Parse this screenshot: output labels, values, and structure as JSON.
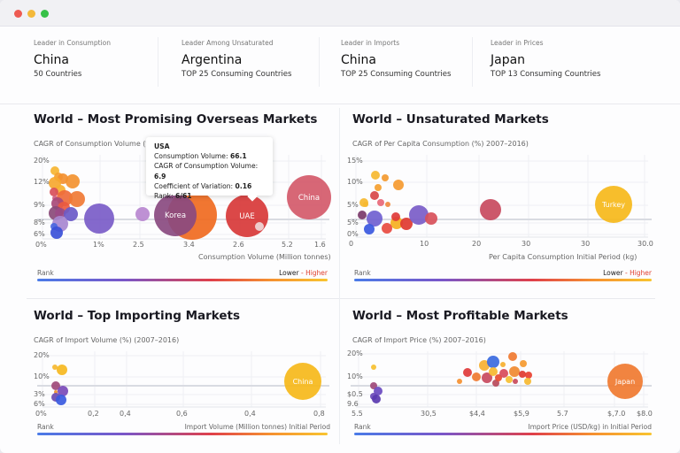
{
  "window": {
    "controls": [
      {
        "name": "close",
        "color": "#ee5b52"
      },
      {
        "name": "minimize",
        "color": "#f4b93a"
      },
      {
        "name": "maximize",
        "color": "#37c148"
      }
    ]
  },
  "stats": [
    {
      "label": "Leader in Consumption",
      "value": "China",
      "sub": "50 Countries"
    },
    {
      "label": "Leader Among Unsaturated",
      "value": "Argentina",
      "sub": "TOP 25 Consuming Countries"
    },
    {
      "label": "Leader in Imports",
      "value": "China",
      "sub": "TOP 25 Consuming Countries"
    },
    {
      "label": "Leader in Prices",
      "value": "Japan",
      "sub": "TOP  13 Consuming Countries"
    }
  ],
  "legend": {
    "rank": "Rank",
    "lower": "Lower",
    "sep": " - ",
    "higher": "Higher"
  },
  "tooltip": {
    "title": "USA",
    "rows": [
      {
        "k": "Consumption Volume: ",
        "v": "66.1"
      },
      {
        "k": "CAGR of Consumption Volume: ",
        "v": "6.9"
      },
      {
        "k": "Coefficient of Variation: ",
        "v": "0.16"
      },
      {
        "k": "Rank: ",
        "v": "6/61"
      }
    ]
  },
  "chart_data": [
    {
      "id": "c1",
      "type": "scatter",
      "title": "World – Most Promising Overseas Markets",
      "ylabel": "CAGR of Consumption Volume (%",
      "xlabel": "Consumption Volume (Million tonnes)",
      "xlim": [
        0,
        32
      ],
      "ylim": [
        0,
        9.5
      ],
      "highlight_y": 2.2,
      "xticks": [
        {
          "l": "0%",
          "v": 0
        },
        {
          "l": "1%",
          "v": 6.5
        },
        {
          "l": "2.5",
          "v": 11
        },
        {
          "l": "3.4",
          "v": 16.7
        },
        {
          "l": "2.6",
          "v": 22.3
        },
        {
          "l": "5.2",
          "v": 27.8
        },
        {
          "l": "1.6",
          "v": 31.5
        }
      ],
      "yticks": [
        {
          "l": "20%",
          "v": 8.8
        },
        {
          "l": "12%",
          "v": 6.4
        },
        {
          "l": "9%",
          "v": 3.8
        },
        {
          "l": "8%",
          "v": 1.8
        },
        {
          "l": "6%",
          "v": 0.5
        }
      ],
      "points": [
        [
          1.4,
          7.7,
          5,
          "#f6b533"
        ],
        [
          1.8,
          7.0,
          5,
          "#f5a030"
        ],
        [
          2.3,
          6.8,
          6,
          "#f39030"
        ],
        [
          3.4,
          6.5,
          8,
          "#f39330"
        ],
        [
          1.4,
          6.3,
          7,
          "#f6a830"
        ],
        [
          2.0,
          5.5,
          6,
          "#f6b030"
        ],
        [
          1.3,
          5.3,
          5,
          "#d8505a"
        ],
        [
          2.5,
          4.6,
          9,
          "#ee6a3a"
        ],
        [
          3.9,
          4.5,
          9,
          "#f07a35"
        ],
        [
          1.4,
          4.6,
          3,
          "#d06080"
        ],
        [
          1.7,
          4.0,
          7,
          "#a84a78"
        ],
        [
          2.4,
          3.5,
          7,
          "#ea5a40"
        ],
        [
          1.5,
          2.9,
          8,
          "#8a4a7a"
        ],
        [
          2.0,
          2.9,
          6,
          "#9a4a88"
        ],
        [
          3.2,
          2.8,
          8,
          "#6a5ac8"
        ],
        [
          2.0,
          1.7,
          9,
          "#a888d0"
        ],
        [
          1.3,
          1.4,
          4,
          "#4a68e0"
        ],
        [
          1.6,
          0.7,
          7,
          "#3a50d8"
        ],
        [
          6.4,
          2.3,
          17,
          "#7a5cc8"
        ],
        [
          11.3,
          2.8,
          8,
          "#b888d0"
        ],
        [
          16.9,
          2.7,
          28,
          "#f06a20"
        ],
        [
          15.0,
          2.7,
          24,
          "#8a4a80",
          "Korea"
        ],
        [
          23.1,
          2.6,
          24,
          "#d83838",
          "UAE"
        ],
        [
          24.5,
          1.4,
          5,
          "#f0d8d8"
        ],
        [
          30.1,
          4.7,
          25,
          "#d45a6a",
          "China"
        ]
      ]
    },
    {
      "id": "c2",
      "type": "scatter",
      "title": "World – Unsaturated Markets",
      "ylabel": "CAGR of Per Capita Consumption (%) 2007–2016)",
      "xlabel": "Per Capita Consumption Initial Period (kg)",
      "xlim": [
        0,
        33
      ],
      "ylim": [
        0,
        9.3
      ],
      "highlight_y": 2.0,
      "xticks": [
        {
          "l": "0",
          "v": 0
        },
        {
          "l": "10",
          "v": 8
        },
        {
          "l": "20",
          "v": 13.9
        },
        {
          "l": "30",
          "v": 19.5
        },
        {
          "l": "30",
          "v": 26.2
        },
        {
          "l": "30.0",
          "v": 32.6
        }
      ],
      "yticks": [
        {
          "l": "15%",
          "v": 8.6
        },
        {
          "l": "10%",
          "v": 6.2
        },
        {
          "l": "5%",
          "v": 3.6
        },
        {
          "l": "5%",
          "v": 1.6
        },
        {
          "l": "0%",
          "v": 0.3
        }
      ],
      "points": [
        [
          2.2,
          7.0,
          5,
          "#f6b830"
        ],
        [
          3.3,
          6.7,
          4,
          "#f39a30"
        ],
        [
          2.5,
          5.6,
          4,
          "#f5a030"
        ],
        [
          4.8,
          5.9,
          6,
          "#f59a30"
        ],
        [
          2.1,
          4.7,
          5,
          "#d84848"
        ],
        [
          2.8,
          3.9,
          4,
          "#e86878"
        ],
        [
          3.6,
          3.7,
          3,
          "#f08a40"
        ],
        [
          0.9,
          3.9,
          5,
          "#f6b830"
        ],
        [
          1.1,
          3.7,
          3,
          "#f6b830"
        ],
        [
          0.7,
          2.5,
          5,
          "#7a3a6a"
        ],
        [
          2.1,
          2.1,
          9,
          "#7060d0"
        ],
        [
          4.6,
          1.6,
          7,
          "#f6b020"
        ],
        [
          4.5,
          2.3,
          5,
          "#e03a3a"
        ],
        [
          5.7,
          1.5,
          7,
          "#e03a30"
        ],
        [
          3.5,
          1.0,
          6,
          "#e84a40"
        ],
        [
          1.5,
          0.9,
          6,
          "#3a58e0"
        ],
        [
          7.1,
          2.5,
          11,
          "#7a5cc8"
        ],
        [
          8.5,
          2.1,
          7,
          "#d8505a"
        ],
        [
          15.2,
          3.1,
          12,
          "#c84a5e"
        ],
        [
          29.1,
          3.7,
          21,
          "#f6b81a",
          "Turkey"
        ]
      ]
    },
    {
      "id": "c3",
      "type": "scatter",
      "title": "World – Top Importing Markets",
      "ylabel": "CAGR of Import Volume (%) (2007–2016)",
      "xlabel": "Import Volume (Million tonnes) Initial Period",
      "xlim": [
        0,
        32
      ],
      "ylim": [
        0,
        6.3
      ],
      "highlight_y": 2.4,
      "xticks": [
        {
          "l": "0%",
          "v": 0
        },
        {
          "l": "0,2",
          "v": 5.9
        },
        {
          "l": "0,4",
          "v": 9.5
        },
        {
          "l": "0,6",
          "v": 15.9
        },
        {
          "l": "0,4",
          "v": 23.6
        },
        {
          "l": "0,8",
          "v": 31.4
        }
      ],
      "yticks": [
        {
          "l": "20%",
          "v": 5.8
        },
        {
          "l": "10%",
          "v": 3.4
        },
        {
          "l": "3%",
          "v": 1.4
        },
        {
          "l": "6%",
          "v": 0.3
        }
      ],
      "points": [
        [
          1.4,
          4.5,
          3,
          "#f6b830"
        ],
        [
          2.2,
          4.2,
          6,
          "#f6b820"
        ],
        [
          1.5,
          2.4,
          5,
          "#a04a7a"
        ],
        [
          2.3,
          1.8,
          6,
          "#7a4ab8"
        ],
        [
          1.5,
          1.7,
          2,
          "#f09030"
        ],
        [
          1.5,
          1.1,
          5,
          "#6a4ab0"
        ],
        [
          2.1,
          0.8,
          6,
          "#3a5ae0"
        ],
        [
          29.4,
          2.9,
          21,
          "#f6b81a",
          "China"
        ]
      ]
    },
    {
      "id": "c4",
      "type": "scatter",
      "title": "World – Most Profitable Markets",
      "ylabel": "CAGR of Import Price (%)  2007–2016)",
      "xlabel": "Import Price (USD/kg)  in  Initial Period",
      "xlim": [
        0,
        33
      ],
      "ylim": [
        0,
        6.3
      ],
      "highlight_y": 2.4,
      "xticks": [
        {
          "l": "5.5",
          "v": 0.3
        },
        {
          "l": "30,5",
          "v": 8.1
        },
        {
          "l": "$4,4",
          "v": 13.6
        },
        {
          "l": "$5,9",
          "v": 18.6
        },
        {
          "l": "5.7",
          "v": 23.5
        },
        {
          "l": "$,7.0",
          "v": 29.2
        },
        {
          "l": "$8.0",
          "v": 32.5
        }
      ],
      "yticks": [
        {
          "l": "20%",
          "v": 6.0
        },
        {
          "l": "10%",
          "v": 3.4
        },
        {
          "l": "$0.5",
          "v": 1.4
        },
        {
          "l": "9.6",
          "v": 0.3
        }
      ],
      "points": [
        [
          2.0,
          4.5,
          3,
          "#f6c030"
        ],
        [
          2.0,
          2.4,
          4,
          "#a04a7a"
        ],
        [
          2.5,
          1.8,
          5,
          "#6a4ac0"
        ],
        [
          2.0,
          1.2,
          4,
          "#6a4ab8"
        ],
        [
          2.3,
          0.9,
          5,
          "#5a3ab0"
        ],
        [
          11.7,
          2.9,
          3,
          "#f59030"
        ],
        [
          12.6,
          3.9,
          5,
          "#e03a3a"
        ],
        [
          13.6,
          3.4,
          5,
          "#f07a30"
        ],
        [
          14.5,
          4.7,
          6,
          "#f6b030"
        ],
        [
          14.8,
          3.3,
          6,
          "#c84a5e"
        ],
        [
          15.5,
          5.1,
          7,
          "#3a6ae0"
        ],
        [
          15.5,
          4.0,
          5,
          "#f6b830"
        ],
        [
          15.8,
          2.7,
          4,
          "#b84a5a"
        ],
        [
          16.1,
          3.3,
          4,
          "#e84a30"
        ],
        [
          16.6,
          4.8,
          3,
          "#f6b030"
        ],
        [
          16.7,
          3.8,
          5,
          "#d84a5a"
        ],
        [
          17.3,
          3.1,
          4,
          "#f6c030"
        ],
        [
          17.7,
          5.7,
          5,
          "#f07a30"
        ],
        [
          17.9,
          4.0,
          6,
          "#f08a30"
        ],
        [
          18.0,
          2.9,
          3,
          "#c84a5a"
        ],
        [
          18.8,
          3.7,
          4,
          "#e03a30"
        ],
        [
          18.9,
          4.9,
          4,
          "#f59a30"
        ],
        [
          19.5,
          3.6,
          4,
          "#e84030"
        ],
        [
          19.4,
          2.9,
          4,
          "#f6b830"
        ],
        [
          30.4,
          2.9,
          20,
          "#f07a30",
          "Japan"
        ]
      ]
    }
  ]
}
